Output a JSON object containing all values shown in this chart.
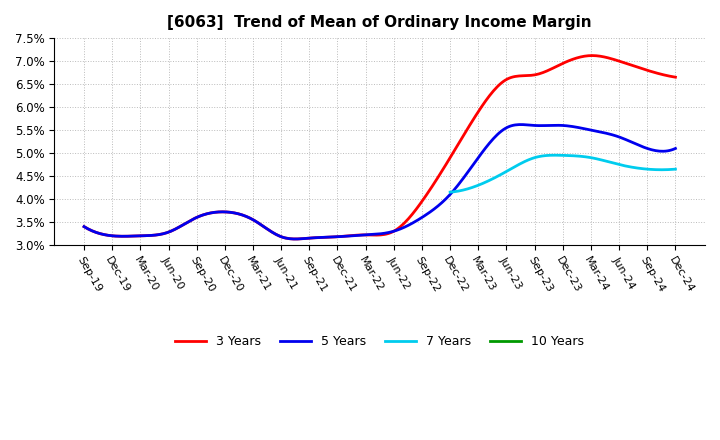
{
  "title": "[6063]  Trend of Mean of Ordinary Income Margin",
  "background_color": "#ffffff",
  "grid_color": "#aaaaaa",
  "legend": [
    "3 Years",
    "5 Years",
    "7 Years",
    "10 Years"
  ],
  "legend_colors": [
    "#ff0000",
    "#0000ee",
    "#00ccee",
    "#009900"
  ],
  "x_labels": [
    "Sep-19",
    "Dec-19",
    "Mar-20",
    "Jun-20",
    "Sep-20",
    "Dec-20",
    "Mar-21",
    "Jun-21",
    "Sep-21",
    "Dec-21",
    "Mar-22",
    "Jun-22",
    "Sep-22",
    "Dec-22",
    "Mar-23",
    "Jun-23",
    "Sep-23",
    "Dec-23",
    "Mar-24",
    "Jun-24",
    "Sep-24",
    "Dec-24"
  ],
  "ylim": [
    0.03,
    0.075
  ],
  "yticks": [
    0.03,
    0.035,
    0.04,
    0.045,
    0.05,
    0.055,
    0.06,
    0.065,
    0.07,
    0.075
  ],
  "series_3y": [
    0.034,
    0.032,
    0.032,
    0.0328,
    0.036,
    0.0372,
    0.0355,
    0.0318,
    0.0315,
    0.0318,
    0.0322,
    0.033,
    0.0395,
    0.049,
    0.059,
    0.066,
    0.067,
    0.0695,
    0.0712,
    0.07,
    0.068,
    0.0665
  ],
  "series_5y": [
    0.034,
    0.032,
    0.032,
    0.0328,
    0.036,
    0.0372,
    0.0355,
    0.0318,
    0.0315,
    0.0318,
    0.0322,
    0.033,
    0.036,
    0.041,
    0.049,
    0.0555,
    0.056,
    0.056,
    0.055,
    0.0535,
    0.051,
    0.051
  ],
  "series_7y": [
    null,
    null,
    null,
    null,
    null,
    null,
    null,
    null,
    null,
    null,
    null,
    null,
    null,
    0.0415,
    0.043,
    0.046,
    0.049,
    0.0495,
    0.049,
    0.0475,
    0.0465,
    0.0465
  ],
  "series_10y": [
    null,
    null,
    null,
    null,
    null,
    null,
    null,
    null,
    null,
    null,
    null,
    null,
    null,
    null,
    null,
    null,
    null,
    null,
    null,
    null,
    null,
    null
  ]
}
